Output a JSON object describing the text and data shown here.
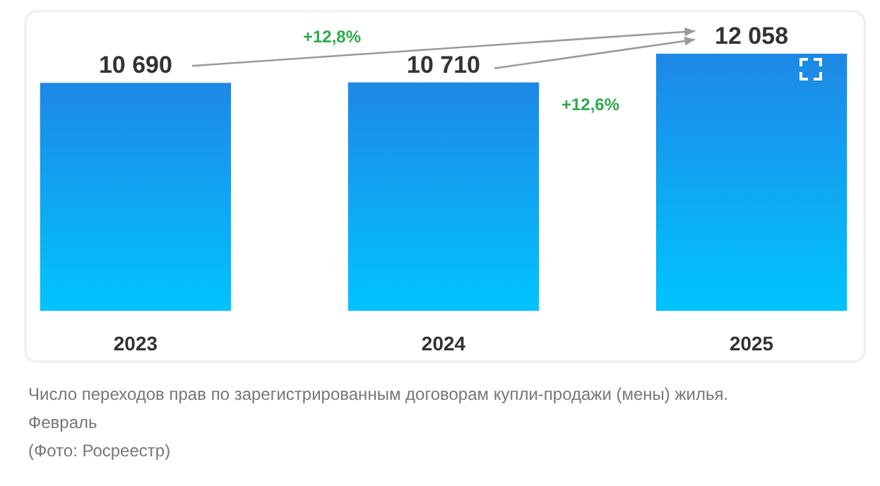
{
  "chart_data": {
    "type": "bar",
    "categories": [
      "2023",
      "2024",
      "2025"
    ],
    "values": [
      10690,
      10710,
      12058
    ],
    "value_labels": [
      "10 690",
      "10 710",
      "12 058"
    ],
    "color": "#1e88e5",
    "annotations": [
      "+12,8%",
      "+12,6%",
      "Число переходов прав по зарегистрированным договорам купли-продажи (мены) жилья.",
      "Февраль",
      "(Фото: Росреестр)"
    ]
  }
}
